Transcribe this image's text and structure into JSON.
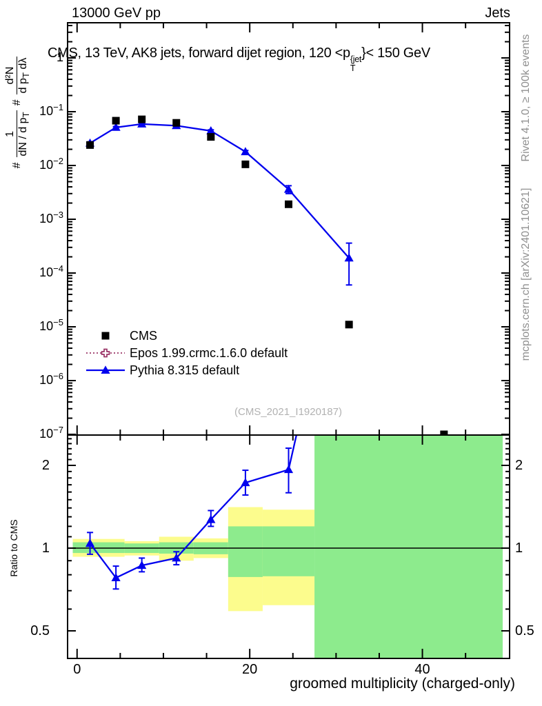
{
  "chart_data": {
    "type": "line",
    "header": {
      "left": "13000 GeV pp",
      "right": "Jets"
    },
    "panel_title": {
      "prefix": "CMS, 13 TeV, AK8 jets, forward dijet region, 120 <p",
      "sup": "{jet",
      "sub": "T",
      "suffix": "}< 150 GeV"
    },
    "xlabel": "groomed multiplicity (charged-only)",
    "ylabel": {
      "h1": "#",
      "f1_num": "1",
      "f1_den": "dN / d p_T",
      "h2": "#",
      "f2_num": "d²N",
      "f2_den": "d p_T dλ"
    },
    "ratio_label": "Ratio to CMS",
    "watermark": "(CMS_2021_I1920187)",
    "side_notes": {
      "top": "Rivet 4.1.0, ≥ 100k events",
      "bottom": "mcplots.cern.ch [arXiv:2401.10621]"
    },
    "axes": {
      "x": {
        "min": -1.1,
        "max": 50.1,
        "major_ticks": [
          0,
          20,
          40
        ],
        "minor_step": 5,
        "tick_labels": [
          "0",
          "20",
          "40"
        ]
      },
      "y_top": {
        "scale": "log",
        "min": 1e-07,
        "max": 4.5,
        "decade_exponents": [
          0,
          -1,
          -2,
          -3,
          -4,
          -5,
          -6,
          -7
        ]
      },
      "y_ratio": {
        "scale": "log",
        "min": 0.4,
        "max": 2.58,
        "major_ticks": [
          2,
          1,
          0.5
        ],
        "tick_labels": [
          "2",
          "1",
          "0.5"
        ]
      }
    },
    "series": {
      "cms": {
        "label": "CMS",
        "marker": "square",
        "color": "#000000",
        "x": [
          1.5,
          4.5,
          7.5,
          11.5,
          15.5,
          19.5,
          24.5,
          31.5,
          42.5
        ],
        "y": [
          0.024,
          0.068,
          0.072,
          0.062,
          0.034,
          0.0105,
          0.0019,
          1.1e-05,
          1e-07
        ]
      },
      "epos": {
        "label": "Epos 1.99.crmc.1.6.0 default",
        "marker": "open-cross",
        "line": "dotted",
        "color": "#993366",
        "x": [],
        "y": []
      },
      "pythia": {
        "label": "Pythia 8.315 default",
        "marker": "triangle",
        "line": "solid",
        "color": "#0000ee",
        "x": [
          1.5,
          4.5,
          7.5,
          11.5,
          15.5,
          19.5,
          24.5,
          31.5
        ],
        "y": [
          0.026,
          0.051,
          0.059,
          0.055,
          0.044,
          0.018,
          0.0036,
          0.00019
        ],
        "y_lo": [
          0.0245,
          0.049,
          0.057,
          0.053,
          0.042,
          0.017,
          0.003,
          6e-05
        ],
        "y_hi": [
          0.0275,
          0.053,
          0.061,
          0.057,
          0.046,
          0.019,
          0.0042,
          0.00036
        ]
      }
    },
    "ratio": {
      "x": [
        1.5,
        4.5,
        7.5,
        11.5,
        15.5,
        19.5,
        24.5
      ],
      "y": [
        1.04,
        0.78,
        0.865,
        0.92,
        1.27,
        1.73,
        1.93
      ],
      "y_lo": [
        0.95,
        0.71,
        0.82,
        0.87,
        1.2,
        1.56,
        1.59
      ],
      "y_hi": [
        1.14,
        0.86,
        0.92,
        0.97,
        1.37,
        1.92,
        2.31
      ],
      "offscale_next": {
        "x": 31.5,
        "y": 17.9
      },
      "bands": [
        {
          "x0": -0.5,
          "x1": 5.5,
          "yellow": [
            0.93,
            1.08
          ],
          "green": [
            0.96,
            1.05
          ]
        },
        {
          "x0": 5.5,
          "x1": 9.5,
          "yellow": [
            0.94,
            1.06
          ],
          "green": [
            0.96,
            1.04
          ]
        },
        {
          "x0": 9.5,
          "x1": 13.5,
          "yellow": [
            0.9,
            1.1
          ],
          "green": [
            0.955,
            1.05
          ]
        },
        {
          "x0": 13.5,
          "x1": 17.5,
          "yellow": [
            0.92,
            1.085
          ],
          "green": [
            0.95,
            1.05
          ]
        },
        {
          "x0": 17.5,
          "x1": 21.5,
          "yellow": [
            0.59,
            1.41
          ],
          "green": [
            0.785,
            1.2
          ]
        },
        {
          "x0": 21.5,
          "x1": 27.5,
          "yellow": [
            0.62,
            1.38
          ],
          "green": [
            0.79,
            1.2
          ]
        },
        {
          "x0": 27.5,
          "x1": 49.3,
          "full_green": true
        }
      ]
    },
    "colors": {
      "yellow_band": "#fcfc8d",
      "green_band": "#8deb8d",
      "blue": "#0000ee",
      "epos": "#993366",
      "note_gray": "#8f8f8f",
      "watermark_gray": "#b2b2b2"
    }
  }
}
